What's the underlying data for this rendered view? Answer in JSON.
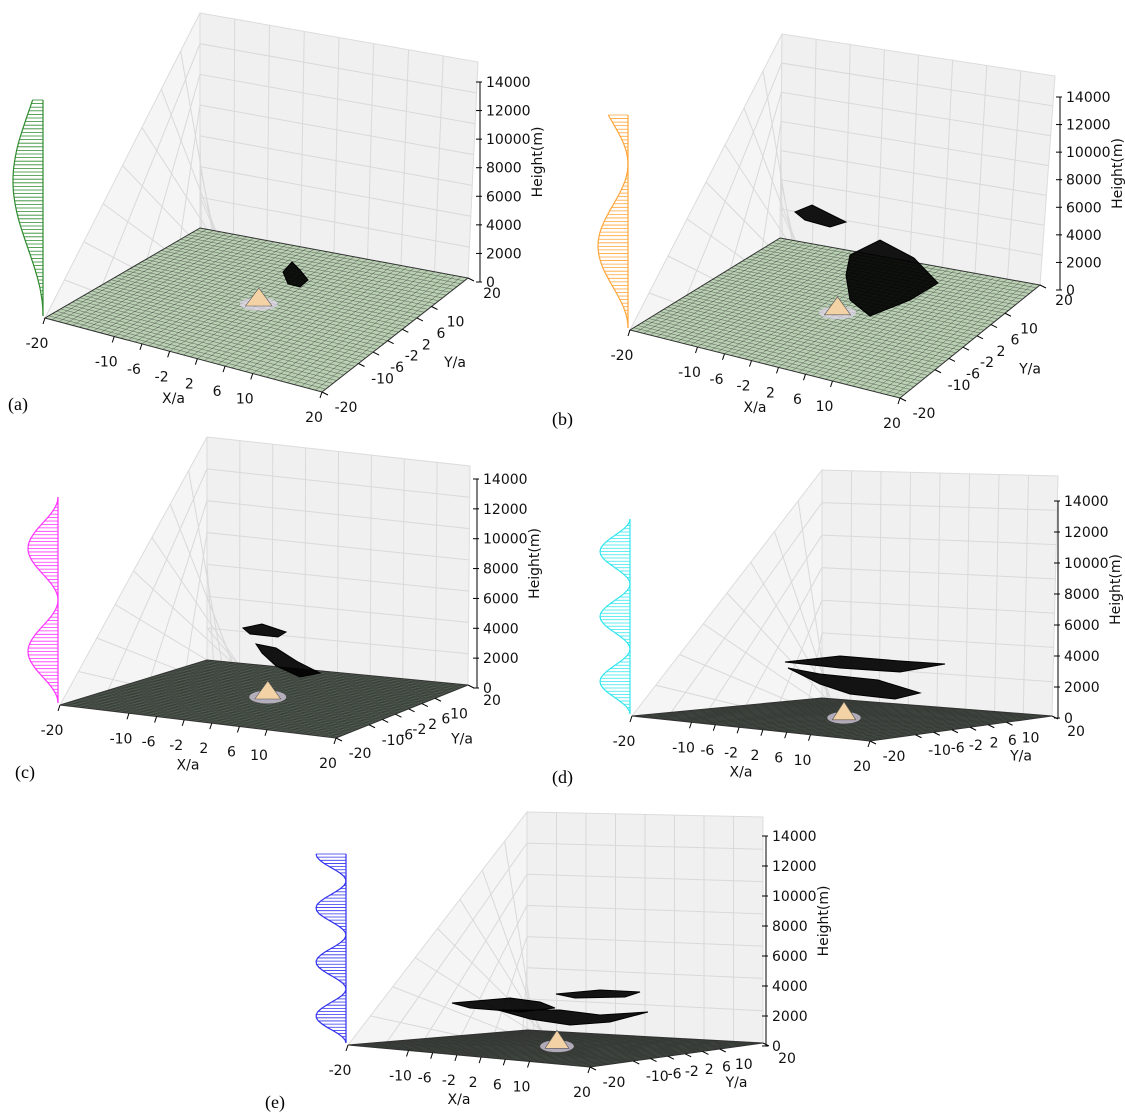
{
  "figure": {
    "panel_labels": [
      "(a)",
      "(b)",
      "(c)",
      "(d)",
      "(e)"
    ]
  },
  "colors": {
    "pane_back": "#f0f0f0",
    "pane_side": "#f5f5f5",
    "grid": "#d9d9d9",
    "floor_light": "#b9d0b3",
    "floor_dark": "#4f5a4f",
    "mesh_line": "#2a2a2a",
    "hill": "#f3d2a6",
    "cloud": "#000000"
  },
  "chart_data": [
    {
      "type": "surface3d",
      "panel": "(a)",
      "xlabel": "X/a",
      "ylabel": "Y/a",
      "zlabel": "Height(m)",
      "x_ticks": [
        -20,
        -10,
        -6,
        -2,
        2,
        6,
        10,
        20
      ],
      "y_ticks": [
        -20,
        -10,
        -6,
        -2,
        2,
        6,
        10,
        20
      ],
      "z_ticks": [
        0,
        2000,
        4000,
        6000,
        8000,
        10000,
        12000,
        14000
      ],
      "xlim": [
        -20,
        20
      ],
      "ylim": [
        -20,
        20
      ],
      "zlim": [
        0,
        14000
      ],
      "profile_color": "#2e8b2e",
      "profile_wavelengths": 0.8,
      "cloud_extent": "small"
    },
    {
      "type": "surface3d",
      "panel": "(b)",
      "xlabel": "X/a",
      "ylabel": "Y/a",
      "zlabel": "Height(m)",
      "x_ticks": [
        -20,
        -10,
        -6,
        -2,
        2,
        6,
        10,
        20
      ],
      "y_ticks": [
        -20,
        -10,
        -6,
        -2,
        2,
        6,
        10,
        20
      ],
      "z_ticks": [
        0,
        2000,
        4000,
        6000,
        8000,
        10000,
        12000,
        14000
      ],
      "xlim": [
        -20,
        20
      ],
      "ylim": [
        -20,
        20
      ],
      "zlim": [
        0,
        14000
      ],
      "profile_color": "#ffa53a",
      "profile_wavelengths": 1.3,
      "cloud_extent": "medium"
    },
    {
      "type": "surface3d",
      "panel": "(c)",
      "xlabel": "X/a",
      "ylabel": "Y/a",
      "zlabel": "Height(m)",
      "x_ticks": [
        -20,
        -10,
        -6,
        -2,
        2,
        6,
        10,
        20
      ],
      "y_ticks": [
        -20,
        -10,
        -6,
        -2,
        2,
        6,
        10,
        20
      ],
      "z_ticks": [
        0,
        2000,
        4000,
        6000,
        8000,
        10000,
        12000,
        14000
      ],
      "xlim": [
        -20,
        20
      ],
      "ylim": [
        -20,
        20
      ],
      "zlim": [
        0,
        14000
      ],
      "profile_color": "#ff33ff",
      "profile_wavelengths": 2.0,
      "cloud_extent": "medium"
    },
    {
      "type": "surface3d",
      "panel": "(d)",
      "xlabel": "X/a",
      "ylabel": "Y/a",
      "zlabel": "Height(m)",
      "x_ticks": [
        -20,
        -10,
        -6,
        -2,
        2,
        6,
        10,
        20
      ],
      "y_ticks": [
        -20,
        -10,
        -6,
        -2,
        2,
        6,
        10,
        20
      ],
      "z_ticks": [
        0,
        2000,
        4000,
        6000,
        8000,
        10000,
        12000,
        14000
      ],
      "xlim": [
        -20,
        20
      ],
      "ylim": [
        -20,
        20
      ],
      "zlim": [
        0,
        14000
      ],
      "profile_color": "#33e6ee",
      "profile_wavelengths": 3.0,
      "cloud_extent": "large"
    },
    {
      "type": "surface3d",
      "panel": "(e)",
      "xlabel": "X/a",
      "ylabel": "Y/a",
      "zlabel": "Height(m)",
      "x_ticks": [
        -20,
        -10,
        -6,
        -2,
        2,
        6,
        10,
        20
      ],
      "y_ticks": [
        -20,
        -10,
        -6,
        -2,
        2,
        6,
        10,
        20
      ],
      "z_ticks": [
        0,
        2000,
        4000,
        6000,
        8000,
        10000,
        12000,
        14000
      ],
      "xlim": [
        -20,
        20
      ],
      "ylim": [
        -20,
        20
      ],
      "zlim": [
        0,
        14000
      ],
      "profile_color": "#3333ee",
      "profile_wavelengths": 3.5,
      "cloud_extent": "large"
    }
  ]
}
